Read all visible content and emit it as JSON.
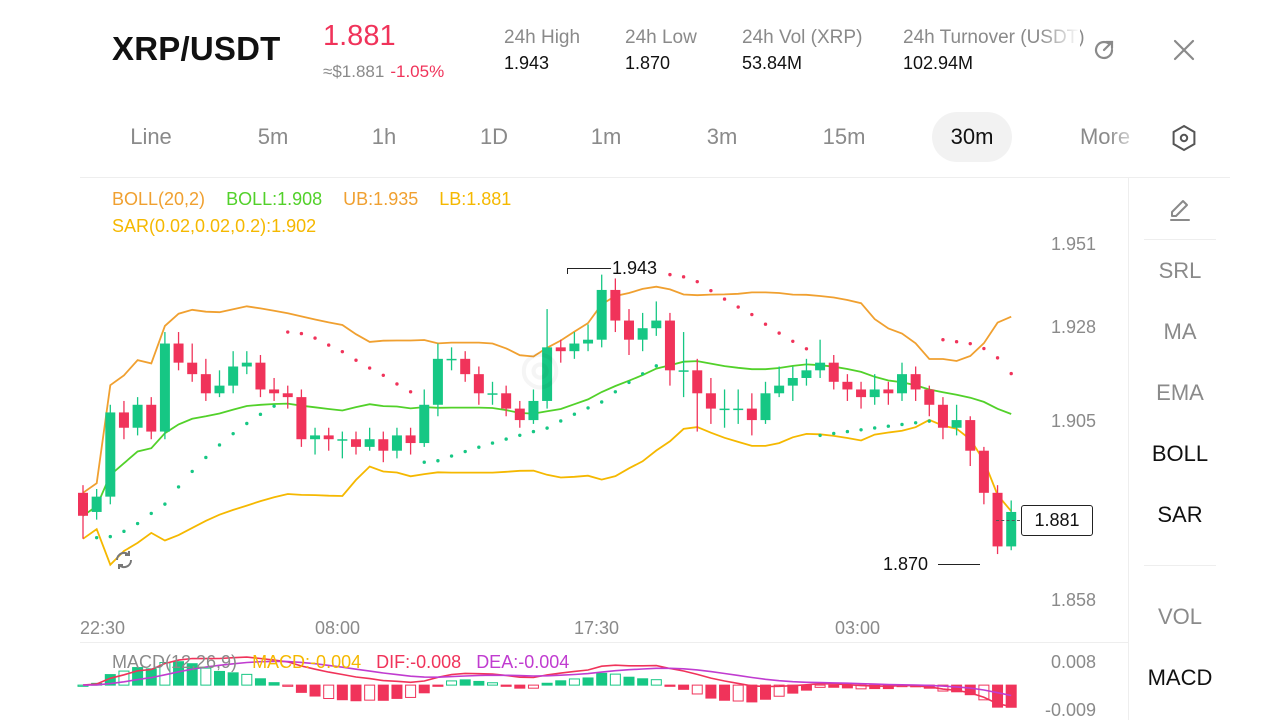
{
  "header": {
    "pair": "XRP/USDT",
    "price": "1.881",
    "approx": "≈$1.881",
    "change": "-1.05%",
    "stats": [
      {
        "label": "24h  High",
        "value": "1.943"
      },
      {
        "label": "24h  Low",
        "value": "1.870"
      },
      {
        "label": "24h  Vol (XRP)",
        "value": "53.84M"
      },
      {
        "label": "24h  Turnover (USDT)",
        "value": "102.94M"
      }
    ],
    "icons": {
      "rotate": "rotate-icon",
      "close": "close-icon"
    }
  },
  "tabs": [
    {
      "label": "Line",
      "active": false
    },
    {
      "label": "5m",
      "active": false
    },
    {
      "label": "1h",
      "active": false
    },
    {
      "label": "1D",
      "active": false
    },
    {
      "label": "1m",
      "active": false
    },
    {
      "label": "3m",
      "active": false
    },
    {
      "label": "15m",
      "active": false
    },
    {
      "label": "30m",
      "active": true
    },
    {
      "label": "More",
      "active": false
    }
  ],
  "sidebar": {
    "items": [
      "SRL",
      "MA",
      "EMA",
      "BOLL",
      "SAR",
      "VOL",
      "MACD"
    ],
    "active": [
      "BOLL",
      "SAR",
      "MACD"
    ]
  },
  "legend": {
    "boll": "BOLL(20,2)",
    "boll_mid": "BOLL:1.908",
    "ub": "UB:1.935",
    "lb": "LB:1.881",
    "sar": "SAR(0.02,0.02,0.2):1.902",
    "macd": "MACD(12,26,9)",
    "macd_val": "MACD:-0.004",
    "dif": "DIF:-0.008",
    "dea": "DEA:-0.004"
  },
  "colors": {
    "up": "#16c784",
    "down": "#f0335a",
    "boll_mid": "#52d12a",
    "ub": "#f0a030",
    "lb": "#f5b800",
    "sar": "#f0335a",
    "dea": "#c03cd0"
  },
  "chart_data": {
    "type": "candlestick",
    "title": "XRP/USDT 30m",
    "y_ticks": [
      "1.951",
      "1.928",
      "1.905",
      "1.858"
    ],
    "x_ticks": [
      "22:30",
      "08:00",
      "17:30",
      "03:00"
    ],
    "ylim": [
      1.858,
      1.951
    ],
    "high_marker": "1.943",
    "low_marker": "1.870",
    "last_price": "1.881",
    "candles": [
      [
        1.886,
        1.88,
        1.888,
        1.874
      ],
      [
        1.881,
        1.885,
        1.887,
        1.879
      ],
      [
        1.885,
        1.907,
        1.909,
        1.883
      ],
      [
        1.907,
        1.903,
        1.91,
        1.9
      ],
      [
        1.903,
        1.909,
        1.911,
        1.901
      ],
      [
        1.909,
        1.902,
        1.911,
        1.9
      ],
      [
        1.902,
        1.925,
        1.928,
        1.9
      ],
      [
        1.925,
        1.92,
        1.928,
        1.918
      ],
      [
        1.92,
        1.917,
        1.925,
        1.915
      ],
      [
        1.917,
        1.912,
        1.921,
        1.91
      ],
      [
        1.912,
        1.914,
        1.918,
        1.911
      ],
      [
        1.914,
        1.919,
        1.923,
        1.912
      ],
      [
        1.919,
        1.92,
        1.923,
        1.917
      ],
      [
        1.92,
        1.913,
        1.922,
        1.911
      ],
      [
        1.913,
        1.912,
        1.916,
        1.91
      ],
      [
        1.912,
        1.911,
        1.914,
        1.908
      ],
      [
        1.911,
        1.9,
        1.913,
        1.898
      ],
      [
        1.9,
        1.901,
        1.903,
        1.896
      ],
      [
        1.901,
        1.9,
        1.903,
        1.897
      ],
      [
        1.9,
        1.9,
        1.902,
        1.895
      ],
      [
        1.9,
        1.898,
        1.902,
        1.896
      ],
      [
        1.898,
        1.9,
        1.903,
        1.897
      ],
      [
        1.9,
        1.897,
        1.902,
        1.894
      ],
      [
        1.897,
        1.901,
        1.903,
        1.895
      ],
      [
        1.901,
        1.899,
        1.903,
        1.896
      ],
      [
        1.899,
        1.909,
        1.913,
        1.898
      ],
      [
        1.909,
        1.921,
        1.925,
        1.906
      ],
      [
        1.921,
        1.921,
        1.924,
        1.918
      ],
      [
        1.921,
        1.917,
        1.923,
        1.915
      ],
      [
        1.917,
        1.912,
        1.919,
        1.909
      ],
      [
        1.912,
        1.912,
        1.915,
        1.909
      ],
      [
        1.912,
        1.908,
        1.914,
        1.906
      ],
      [
        1.908,
        1.905,
        1.91,
        1.903
      ],
      [
        1.905,
        1.91,
        1.913,
        1.904
      ],
      [
        1.91,
        1.924,
        1.934,
        1.908
      ],
      [
        1.924,
        1.923,
        1.926,
        1.92
      ],
      [
        1.923,
        1.925,
        1.928,
        1.921
      ],
      [
        1.925,
        1.926,
        1.93,
        1.923
      ],
      [
        1.926,
        1.939,
        1.943,
        1.924
      ],
      [
        1.939,
        1.931,
        1.942,
        1.928
      ],
      [
        1.931,
        1.926,
        1.934,
        1.922
      ],
      [
        1.926,
        1.929,
        1.933,
        1.923
      ],
      [
        1.929,
        1.931,
        1.936,
        1.927
      ],
      [
        1.931,
        1.918,
        1.933,
        1.914
      ],
      [
        1.918,
        1.918,
        1.928,
        1.911
      ],
      [
        1.918,
        1.912,
        1.921,
        1.902
      ],
      [
        1.912,
        1.908,
        1.916,
        1.904
      ],
      [
        1.908,
        1.908,
        1.913,
        1.903
      ],
      [
        1.908,
        1.908,
        1.913,
        1.904
      ],
      [
        1.908,
        1.905,
        1.912,
        1.901
      ],
      [
        1.905,
        1.912,
        1.915,
        1.904
      ],
      [
        1.912,
        1.914,
        1.919,
        1.911
      ],
      [
        1.914,
        1.916,
        1.919,
        1.91
      ],
      [
        1.916,
        1.918,
        1.921,
        1.914
      ],
      [
        1.918,
        1.92,
        1.926,
        1.916
      ],
      [
        1.92,
        1.915,
        1.922,
        1.913
      ],
      [
        1.915,
        1.913,
        1.917,
        1.91
      ],
      [
        1.913,
        1.911,
        1.915,
        1.908
      ],
      [
        1.911,
        1.913,
        1.917,
        1.909
      ],
      [
        1.913,
        1.912,
        1.915,
        1.909
      ],
      [
        1.912,
        1.917,
        1.92,
        1.91
      ],
      [
        1.917,
        1.913,
        1.919,
        1.91
      ],
      [
        1.913,
        1.909,
        1.914,
        1.906
      ],
      [
        1.909,
        1.903,
        1.911,
        1.9
      ],
      [
        1.903,
        1.905,
        1.909,
        1.901
      ],
      [
        1.905,
        1.897,
        1.906,
        1.893
      ],
      [
        1.897,
        1.886,
        1.898,
        1.883
      ],
      [
        1.886,
        1.872,
        1.888,
        1.87
      ],
      [
        1.872,
        1.881,
        1.884,
        1.871
      ]
    ],
    "macd_y_ticks": [
      "0.008",
      "-0.009"
    ]
  }
}
